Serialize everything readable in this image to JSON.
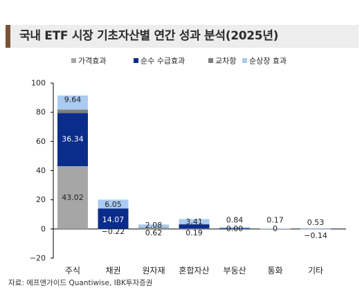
{
  "title": "국내 ETF 시장 기초자산별 연간 성과 분석(2025년)",
  "source": "자료: 에프앤가이드 Quantiwise, IBK투자증권",
  "chart_data": {
    "type": "bar",
    "stacked": true,
    "title": "국내 ETF 시장 기초자산별 연간 성과 분석(2025년)",
    "categories": [
      "주식",
      "채권",
      "원자재",
      "혼합자산",
      "부동산",
      "통화",
      "기타"
    ],
    "series": [
      {
        "name": "가격효과",
        "color": "#a6a6a6",
        "values": [
          43.02,
          -0.22,
          0.62,
          0.19,
          0.0,
          0.0,
          -0.14
        ]
      },
      {
        "name": "순수 수급효과",
        "color": "#0a2d8c",
        "values": [
          36.34,
          14.07,
          0.0,
          3.0,
          0.5,
          0.0,
          0.0
        ]
      },
      {
        "name": "교차항",
        "color": "#7f7f7f",
        "values": [
          2.5,
          0.0,
          0.4,
          0.2,
          0.0,
          0.0,
          0.0
        ]
      },
      {
        "name": "순상장 효과",
        "color": "#a9cbf2",
        "values": [
          9.64,
          6.05,
          2.08,
          3.41,
          0.84,
          0.17,
          0.53
        ]
      }
    ],
    "labels": {
      "가격효과": [
        "43.02",
        "−0.22",
        "0.62",
        "0.19",
        "0.00",
        "0",
        "−0.14"
      ],
      "순수 수급효과": [
        "36.34",
        "14.07"
      ],
      "순상장 효과": [
        "9.64",
        "6.05",
        "2.08",
        "3.41",
        "0.84",
        "0.17",
        "0.53"
      ]
    },
    "ylim": [
      -20,
      100
    ],
    "yticks": [
      -20,
      0,
      20,
      40,
      60,
      80,
      100
    ],
    "ytick_labels": [
      "−20",
      "0",
      "20",
      "40",
      "60",
      "80",
      "100"
    ],
    "legend_position": "top-center",
    "grid": false
  }
}
